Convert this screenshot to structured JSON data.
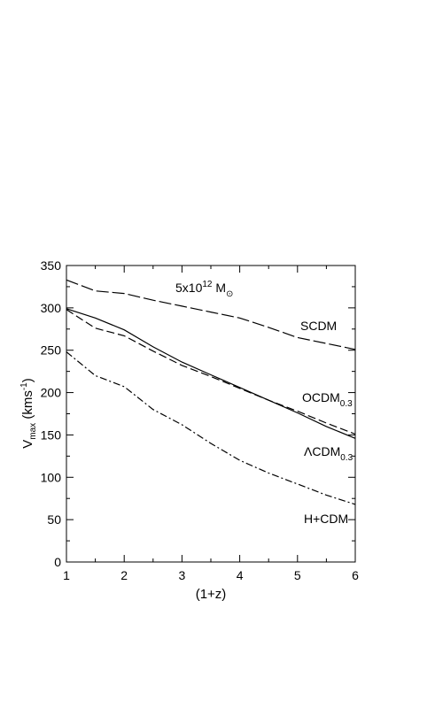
{
  "chart_data": {
    "type": "line",
    "xlabel": "(1+z)",
    "ylabel": {
      "main": "V",
      "sub": "max",
      "rest": " (kms",
      "sup": "-1",
      "close": ")"
    },
    "xlim": [
      1,
      6
    ],
    "ylim": [
      0,
      350
    ],
    "xticks": [
      1,
      2,
      3,
      4,
      5,
      6
    ],
    "yticks": [
      0,
      50,
      100,
      150,
      200,
      250,
      300,
      350
    ],
    "grid": false,
    "annotation": {
      "base": "5x10",
      "sup": "12",
      "mid": " M",
      "sub": "⊙"
    },
    "series": [
      {
        "name": "SCDM",
        "label_sub": "",
        "dash": "long-dash",
        "x": [
          1,
          1.5,
          2,
          2.5,
          3,
          3.5,
          4,
          4.5,
          5,
          5.5,
          6
        ],
        "y": [
          333,
          320,
          317,
          309,
          302,
          295,
          288,
          277,
          265,
          258,
          251
        ]
      },
      {
        "name": "OCDM",
        "label_sub": "0.3",
        "dash": "solid",
        "x": [
          1,
          1.5,
          2,
          2.5,
          3,
          3.5,
          4,
          4.5,
          5,
          5.5,
          6
        ],
        "y": [
          299,
          288,
          274,
          254,
          236,
          221,
          206,
          191,
          176,
          160,
          146
        ]
      },
      {
        "name": "ΛCDM",
        "label_sub": "0.3",
        "dash": "dashed",
        "x": [
          1,
          1.5,
          2,
          2.5,
          3,
          3.5,
          4,
          4.5,
          5,
          5.5,
          6
        ],
        "y": [
          298,
          276,
          267,
          249,
          232,
          219,
          205,
          191,
          178,
          164,
          151
        ]
      },
      {
        "name": "H+CDM",
        "label_sub": "",
        "dash": "dash-dot",
        "x": [
          1,
          1.5,
          2,
          2.5,
          3,
          3.5,
          4,
          4.5,
          5,
          5.5,
          6
        ],
        "y": [
          248,
          220,
          207,
          180,
          162,
          140,
          120,
          105,
          92,
          79,
          68
        ]
      }
    ]
  }
}
